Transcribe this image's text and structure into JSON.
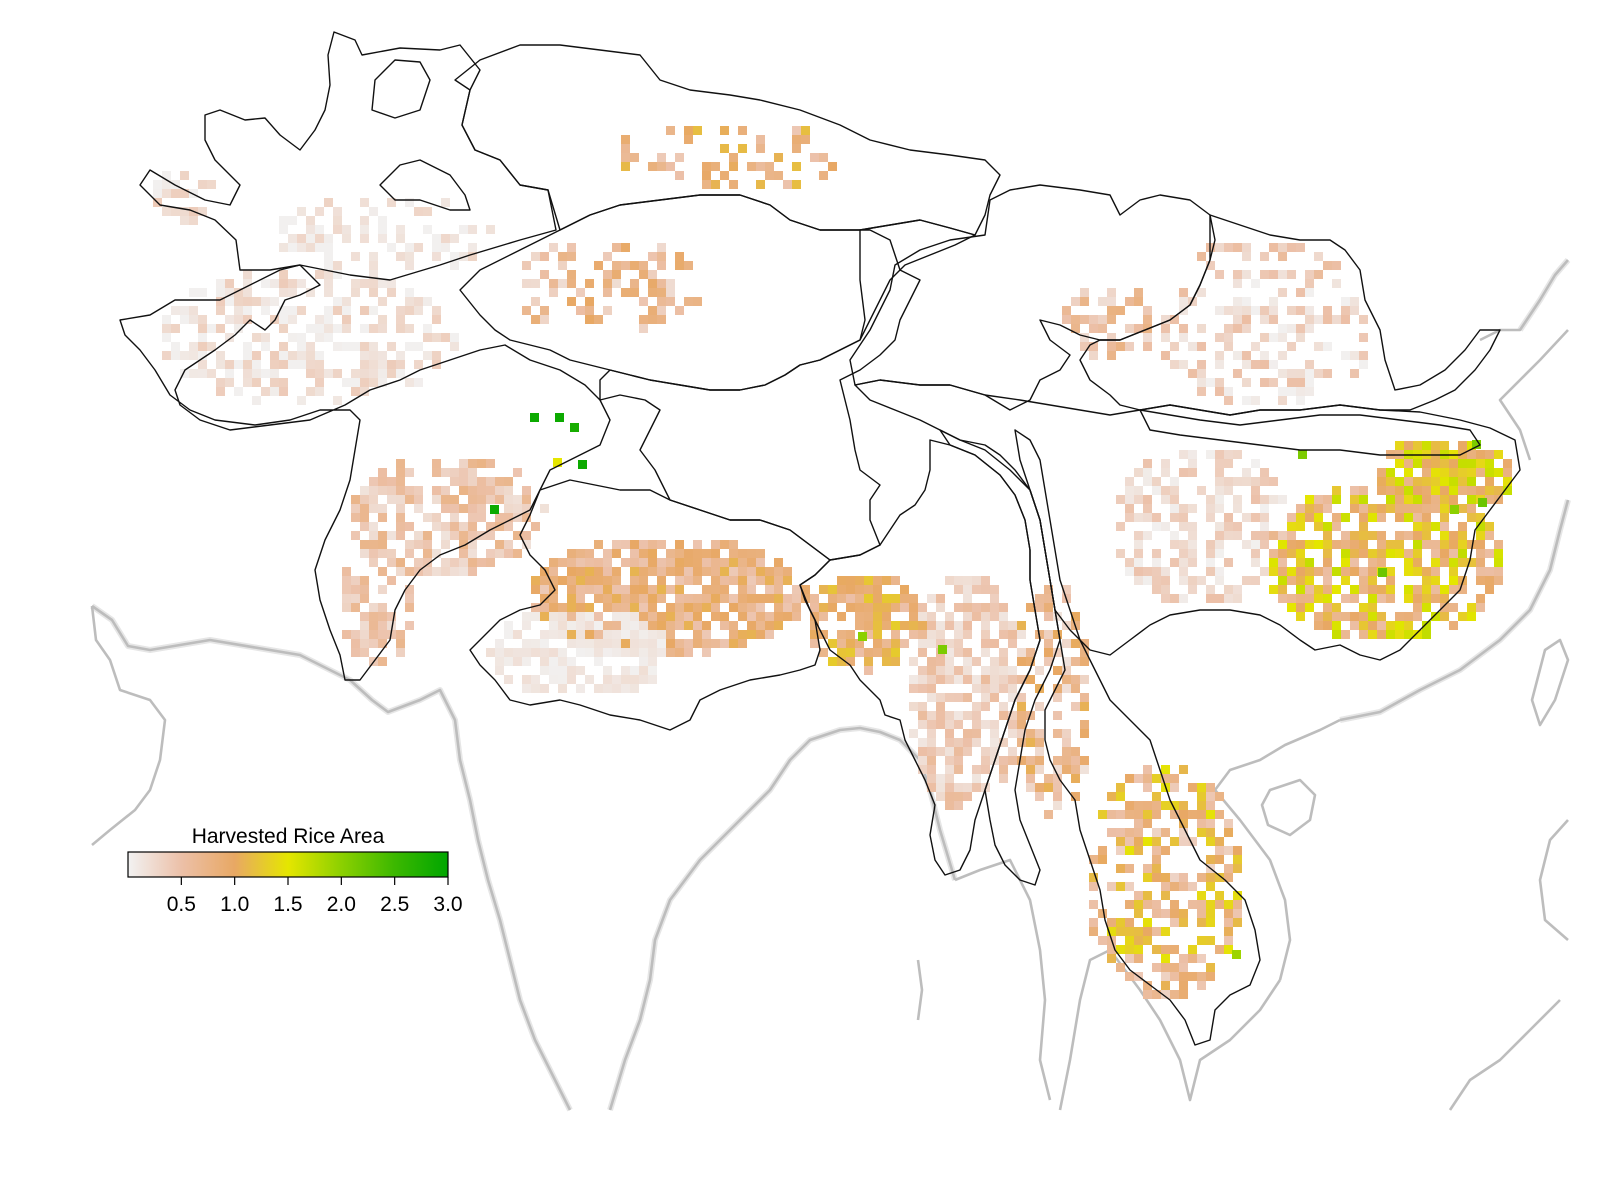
{
  "legend": {
    "title": "Harvested Rice Area",
    "ticks": [
      {
        "value": 0.5,
        "label": "0.5"
      },
      {
        "value": 1.0,
        "label": "1.0"
      },
      {
        "value": 1.5,
        "label": "1.5"
      },
      {
        "value": 2.0,
        "label": "2.0"
      },
      {
        "value": 2.5,
        "label": "2.5"
      },
      {
        "value": 3.0,
        "label": "3.0"
      }
    ],
    "range": [
      0,
      3.0
    ],
    "color_stops": [
      {
        "value": 0.0,
        "color": "#f2f2f2"
      },
      {
        "value": 0.5,
        "color": "#ecc0a8"
      },
      {
        "value": 1.0,
        "color": "#e8a864"
      },
      {
        "value": 1.5,
        "color": "#e5e600"
      },
      {
        "value": 2.0,
        "color": "#8cd000"
      },
      {
        "value": 2.5,
        "color": "#3cb800"
      },
      {
        "value": 3.0,
        "color": "#00a600"
      }
    ]
  },
  "colors": {
    "basin_outline": "#111111",
    "coastline": "#bdbdbd",
    "background": "#ffffff"
  }
}
